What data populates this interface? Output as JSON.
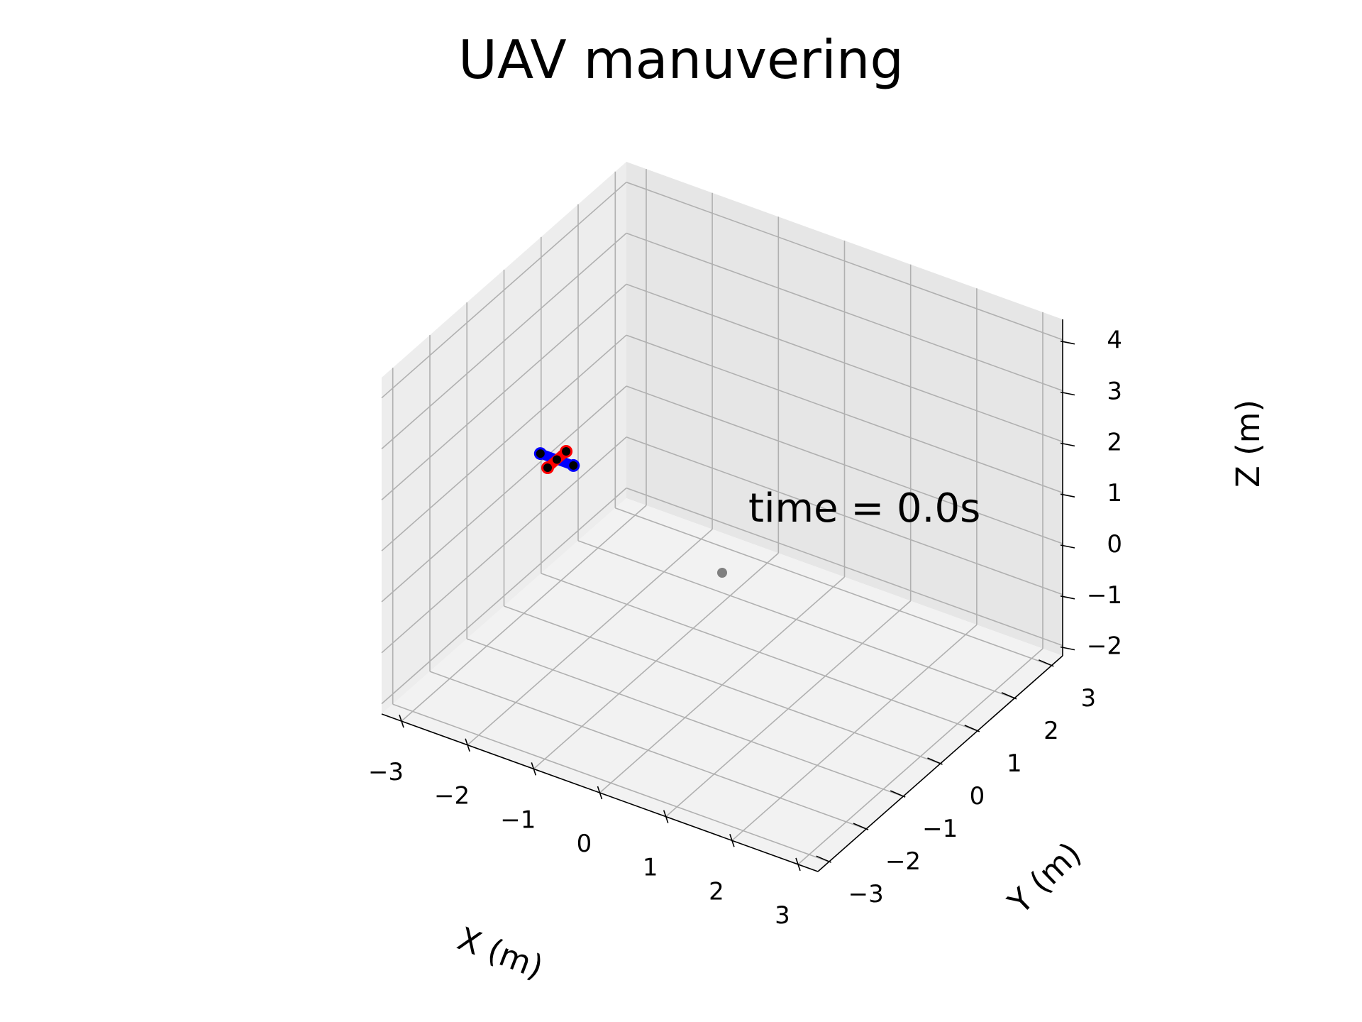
{
  "chart_data": {
    "type": "3d-line",
    "title": "UAV manuvering",
    "xlabel": "X (m)",
    "ylabel": "Y (m)",
    "zlabel": "Z (m)",
    "xlim": [
      -3.3,
      3.3
    ],
    "ylim": [
      -3.3,
      3.3
    ],
    "zlim": [
      -2.2,
      4.4
    ],
    "xticks": [
      -3,
      -2,
      -1,
      0,
      1,
      2,
      3
    ],
    "yticks": [
      -3,
      -2,
      -1,
      0,
      1,
      2,
      3
    ],
    "zticks": [
      -2,
      -1,
      0,
      1,
      2,
      3,
      4
    ],
    "xtick_labels": [
      "−3",
      "−2",
      "−1",
      "0",
      "1",
      "2",
      "3"
    ],
    "ytick_labels": [
      "−3",
      "−2",
      "−1",
      "0",
      "1",
      "2",
      "3"
    ],
    "ztick_labels": [
      "−2",
      "−1",
      "0",
      "1",
      "2",
      "3",
      "4"
    ],
    "grid": true,
    "annotation": "time = 0.0s",
    "series": [
      {
        "color": "#0000ff",
        "points": [
          [
            -2.75,
            0.0,
            1.05
          ],
          [
            -2.25,
            0.0,
            1.05
          ]
        ]
      },
      {
        "color": "#ff0000",
        "points": [
          [
            -2.5,
            -0.25,
            1.05
          ],
          [
            -2.5,
            0.25,
            1.05
          ]
        ]
      }
    ],
    "rotor_points": [
      [
        -2.75,
        0.0,
        1.05
      ],
      [
        -2.25,
        0.0,
        1.05
      ],
      [
        -2.5,
        -0.25,
        1.05
      ],
      [
        -2.5,
        0.25,
        1.05
      ],
      [
        -2.5,
        0.0,
        1.05
      ]
    ],
    "target_point": {
      "color": "#808080",
      "point": [
        0.0,
        0.0,
        0.0
      ]
    }
  }
}
